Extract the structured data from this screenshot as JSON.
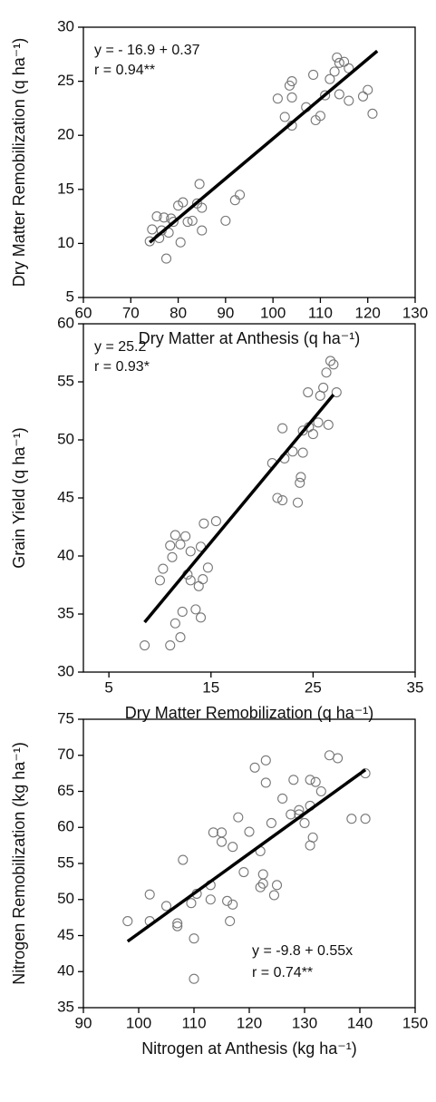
{
  "chart_data": [
    {
      "type": "scatter",
      "x_label": "Dry Matter at Anthesis (q ha⁻¹)",
      "y_label": "Dry Matter Remobilization (q ha⁻¹)",
      "annotations": [
        "y = - 16.9 + 0.37",
        "r = 0.94**"
      ],
      "annotation_position": "top-left",
      "color": "#777777",
      "xlim": [
        60,
        130
      ],
      "xticks": [
        60,
        70,
        80,
        90,
        100,
        110,
        120,
        130
      ],
      "ylim": [
        5,
        30
      ],
      "yticks": [
        5,
        10,
        15,
        20,
        25,
        30
      ],
      "x": [
        74,
        74.5,
        75.5,
        76,
        76.5,
        77,
        77.5,
        78,
        78.5,
        79,
        80,
        80.5,
        81,
        82,
        83,
        84,
        84.5,
        85,
        85,
        90,
        92,
        93,
        101,
        102.5,
        103.5,
        104,
        104,
        104,
        107,
        108.5,
        109,
        110,
        111,
        112,
        113,
        113.5,
        114,
        114,
        115,
        116,
        116,
        119,
        120,
        121
      ],
      "y": [
        10.2,
        11.3,
        12.5,
        10.5,
        11.2,
        12.4,
        8.6,
        11,
        12.3,
        12,
        13.5,
        10.1,
        13.8,
        12,
        12.1,
        13.7,
        15.5,
        11.2,
        13.3,
        12.1,
        14,
        14.5,
        23.4,
        21.7,
        24.6,
        20.9,
        23.5,
        25,
        22.6,
        25.6,
        21.4,
        21.8,
        23.7,
        25.2,
        25.9,
        27.2,
        26.7,
        23.8,
        26.8,
        23.2,
        26.2,
        23.6,
        24.2,
        22
      ],
      "trend_line": {
        "x": [
          74,
          122
        ],
        "y": [
          10.1,
          27.8
        ]
      }
    },
    {
      "type": "scatter",
      "x_label": "Dry Matter Remobilization (q ha⁻¹)",
      "y_label": "Grain Yield (q ha⁻¹)",
      "annotations": [
        "y = 25.2",
        "r = 0.93*"
      ],
      "annotation_position": "top-left",
      "color": "#777777",
      "xlim": [
        2.5,
        35
      ],
      "xticks": [
        5,
        15,
        25,
        35
      ],
      "ylim": [
        30,
        60
      ],
      "yticks": [
        30,
        35,
        40,
        45,
        50,
        55,
        60
      ],
      "x": [
        8.5,
        10,
        10.3,
        11,
        11,
        11.2,
        11.5,
        11.5,
        12,
        12,
        12.2,
        12.5,
        12.7,
        13,
        13,
        13.5,
        13.8,
        14,
        14,
        14.2,
        14.3,
        14.7,
        15.5,
        21,
        21.5,
        22,
        22,
        22.2,
        23,
        23.5,
        23.7,
        23.8,
        24,
        24,
        24.5,
        24.6,
        25,
        25.5,
        25.7,
        26,
        26.3,
        26.5,
        26.7,
        27,
        27.3
      ],
      "y": [
        32.3,
        37.9,
        38.9,
        32.3,
        40.9,
        39.9,
        41.8,
        34.2,
        33,
        41,
        35.2,
        41.7,
        38.4,
        40.4,
        37.9,
        35.4,
        37.4,
        34.7,
        40.8,
        38,
        42.8,
        39,
        43,
        48,
        45,
        44.8,
        51,
        48.4,
        49,
        44.6,
        46.3,
        46.8,
        48.9,
        50.8,
        54.1,
        51.1,
        50.5,
        51.5,
        53.8,
        54.5,
        55.8,
        51.3,
        56.8,
        56.5,
        54.1
      ],
      "trend_line": {
        "x": [
          8.5,
          27
        ],
        "y": [
          34.3,
          53.9
        ]
      }
    },
    {
      "type": "scatter",
      "x_label": "Nitrogen at Anthesis (kg ha⁻¹)",
      "y_label": "Nitrogen Remobilization (kg ha⁻¹)",
      "annotations": [
        "y = -9.8 + 0.55x",
        "r = 0.74**"
      ],
      "annotation_position": "bottom-right",
      "color": "#777777",
      "xlim": [
        90,
        150
      ],
      "xticks": [
        90,
        100,
        110,
        120,
        130,
        140,
        150
      ],
      "ylim": [
        35,
        75
      ],
      "yticks": [
        35,
        40,
        45,
        50,
        55,
        60,
        65,
        70,
        75
      ],
      "x": [
        98,
        102,
        102,
        105,
        107,
        107,
        108,
        109.5,
        110,
        110,
        110.5,
        113,
        113,
        113.5,
        115,
        115,
        116,
        116.5,
        117,
        117,
        118,
        119,
        120,
        121,
        122,
        122,
        122.5,
        122.5,
        123,
        123,
        124,
        124.5,
        125,
        126,
        127.5,
        128,
        129,
        129,
        130,
        131,
        131,
        131,
        131.5,
        132,
        133,
        134.5,
        136,
        138.5,
        141,
        141
      ],
      "y": [
        47,
        50.7,
        47,
        49.1,
        46.3,
        46.7,
        55.5,
        49.5,
        44.6,
        39,
        50.8,
        52,
        50,
        59.3,
        58,
        59.3,
        49.8,
        47,
        49.3,
        57.3,
        61.4,
        53.8,
        59.4,
        68.3,
        56.7,
        51.7,
        52.2,
        53.5,
        69.3,
        66.2,
        60.6,
        50.6,
        52,
        64,
        61.8,
        66.6,
        62.4,
        61.8,
        60.6,
        57.5,
        63,
        66.6,
        58.6,
        66.3,
        65,
        70,
        69.6,
        61.2,
        61.2,
        67.5
      ],
      "trend_line": {
        "x": [
          98,
          141
        ],
        "y": [
          44.2,
          68
        ]
      }
    }
  ]
}
